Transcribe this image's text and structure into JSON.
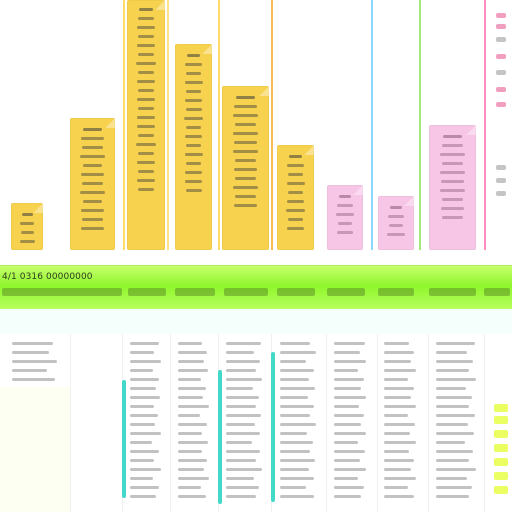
{
  "ui": {
    "band": {
      "left_label": "4/1 0316 00000000"
    }
  },
  "colors": {
    "line_yellow": "#ffd85a",
    "line_orange": "#f6b542",
    "line_blue": "#7fd2ff",
    "line_green": "#9de66d",
    "line_pink": "#ff7fb7",
    "card_yellow": "#f7d24e",
    "card_yellow_light": "#fbe48a",
    "card_pink": "#f7c6e6",
    "band_green": "#8ef62c",
    "mint": "#e9fff6",
    "accent_teal": "#42d9c8",
    "accent_yellow": "#e8ff46"
  }
}
